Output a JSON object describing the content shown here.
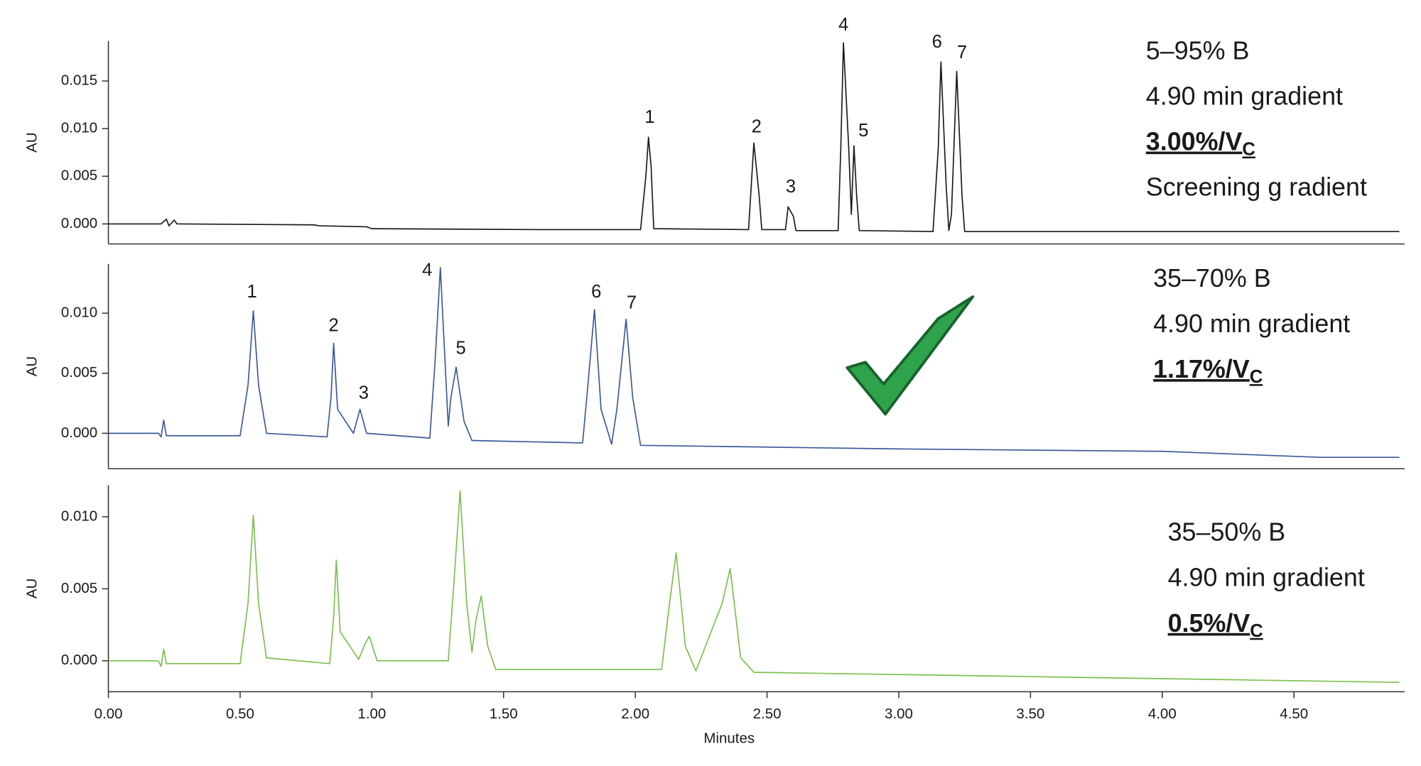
{
  "chart_data": [
    {
      "type": "line",
      "ylabel": "AU",
      "xlim": [
        0,
        4.92
      ],
      "ylim": [
        -0.0021,
        0.0192
      ],
      "yticks": [
        {
          "value": 0,
          "label": "0.000"
        },
        0.005,
        {
          "value": 0.01,
          "label": "0.010"
        },
        0.015
      ],
      "x": [
        0,
        0.2,
        0.22,
        0.23,
        0.25,
        0.26,
        0.78,
        0.8,
        0.98,
        1.0,
        1.65,
        2.02,
        2.04,
        2.05,
        2.06,
        2.07,
        2.43,
        2.44,
        2.45,
        2.47,
        2.48,
        2.57,
        2.58,
        2.6,
        2.61,
        2.77,
        2.78,
        2.79,
        2.81,
        2.82,
        2.83,
        2.84,
        2.85,
        3.13,
        3.15,
        3.16,
        3.18,
        3.19,
        3.2,
        3.22,
        3.24,
        3.25,
        4.9
      ],
      "series": [
        {
          "color": "#1a1a1a",
          "values": [
            0,
            0,
            0.0005,
            -0.0002,
            0.0004,
            0,
            -0.0001,
            -0.0002,
            -0.0003,
            -0.0005,
            -0.0006,
            -0.0006,
            0.005,
            0.0091,
            0.006,
            -0.0005,
            -0.0006,
            0.004,
            0.0085,
            0.003,
            -0.0006,
            -0.0006,
            0.0018,
            0.0008,
            -0.0007,
            -0.0007,
            0.008,
            0.019,
            0.008,
            0.001,
            0.0082,
            0.003,
            -0.0007,
            -0.0008,
            0.008,
            0.017,
            0.004,
            -0.0007,
            0.001,
            0.016,
            0.003,
            -0.0008,
            -0.0008
          ]
        }
      ],
      "peak_labels": [
        {
          "text": "1",
          "x": 2.055,
          "y": 0.0111
        },
        {
          "text": "2",
          "x": 2.46,
          "y": 0.0101
        },
        {
          "text": "3",
          "x": 2.59,
          "y": 0.0038
        },
        {
          "text": "4",
          "x": 2.79,
          "y": 0.0208
        },
        {
          "text": "5",
          "x": 2.866,
          "y": 0.0097
        },
        {
          "text": "6",
          "x": 3.145,
          "y": 0.019
        },
        {
          "text": "7",
          "x": 3.24,
          "y": 0.0179
        }
      ],
      "notes": [
        {
          "text": "5–95% B"
        },
        {
          "text": "4.90 min gradient"
        },
        {
          "text": "3.00%/V",
          "subscript": "C",
          "bold": true
        },
        {
          "text": "Screening g radient"
        }
      ]
    },
    {
      "type": "line",
      "ylabel": "AU",
      "xlim": [
        0,
        4.92
      ],
      "ylim": [
        -0.00295,
        0.0141
      ],
      "yticks": [
        {
          "value": 0,
          "label": "0.000"
        },
        0.005,
        {
          "value": 0.01,
          "label": "0.010"
        }
      ],
      "x": [
        0,
        0.19,
        0.2,
        0.21,
        0.22,
        0.5,
        0.53,
        0.55,
        0.57,
        0.6,
        0.83,
        0.845,
        0.855,
        0.87,
        0.93,
        0.94,
        0.955,
        0.98,
        1.22,
        1.24,
        1.26,
        1.28,
        1.29,
        1.3,
        1.32,
        1.35,
        1.38,
        1.8,
        1.82,
        1.845,
        1.87,
        1.91,
        1.93,
        1.965,
        1.99,
        2.02,
        3.0,
        4.0,
        4.6,
        4.9
      ],
      "series": [
        {
          "color": "#3b5998",
          "values": [
            0,
            0,
            -0.0003,
            0.0011,
            -0.0002,
            -0.0002,
            0.004,
            0.0102,
            0.004,
            0,
            -0.0003,
            0.003,
            0.0075,
            0.002,
            0,
            0.0008,
            0.002,
            0,
            -0.0004,
            0.006,
            0.0138,
            0.005,
            0.0006,
            0.003,
            0.0055,
            0.001,
            -0.0006,
            -0.0008,
            0.004,
            0.0103,
            0.002,
            -0.0009,
            0.002,
            0.0095,
            0.003,
            -0.001,
            -0.0013,
            -0.0015,
            -0.002,
            -0.002
          ]
        }
      ],
      "peak_labels": [
        {
          "text": "1",
          "x": 0.545,
          "y": 0.0117
        },
        {
          "text": "2",
          "x": 0.855,
          "y": 0.0089
        },
        {
          "text": "3",
          "x": 0.969,
          "y": 0.0033
        },
        {
          "text": "4",
          "x": 1.21,
          "y": 0.0135
        },
        {
          "text": "5",
          "x": 1.338,
          "y": 0.007
        },
        {
          "text": "6",
          "x": 1.852,
          "y": 0.0117
        },
        {
          "text": "7",
          "x": 1.986,
          "y": 0.0108
        }
      ],
      "notes": [
        {
          "text": "35–70% B"
        },
        {
          "text": "4.90 min gradient"
        },
        {
          "text": "1.17%/V",
          "subscript": "C",
          "bold": true
        }
      ]
    },
    {
      "type": "line",
      "ylabel": "AU",
      "xlabel": "Minutes",
      "xlim": [
        0,
        4.92
      ],
      "ylim": [
        -0.00215,
        0.0122
      ],
      "xticks": [
        {
          "value": 0,
          "label": "0.00"
        },
        {
          "value": 0.5,
          "label": "0.50"
        },
        {
          "value": 1,
          "label": "1.00"
        },
        {
          "value": 1.5,
          "label": "1.50"
        },
        {
          "value": 2,
          "label": "2.00"
        },
        {
          "value": 2.5,
          "label": "2.50"
        },
        {
          "value": 3,
          "label": "3.00"
        },
        {
          "value": 3.5,
          "label": "3.50"
        },
        {
          "value": 4,
          "label": "4.00"
        },
        {
          "value": 4.5,
          "label": "4.50"
        }
      ],
      "yticks": [
        {
          "value": 0,
          "label": "0.000"
        },
        0.005,
        {
          "value": 0.01,
          "label": "0.010"
        }
      ],
      "x": [
        0,
        0.19,
        0.2,
        0.21,
        0.22,
        0.5,
        0.53,
        0.55,
        0.57,
        0.6,
        0.84,
        0.855,
        0.865,
        0.88,
        0.95,
        0.975,
        0.99,
        1.02,
        1.29,
        1.31,
        1.335,
        1.36,
        1.38,
        1.395,
        1.415,
        1.44,
        1.47,
        2.1,
        2.13,
        2.155,
        2.19,
        2.23,
        2.33,
        2.36,
        2.4,
        2.45,
        3.5,
        4.2,
        4.9
      ],
      "series": [
        {
          "color": "#7cbf4e",
          "values": [
            0,
            0,
            -0.0004,
            0.0008,
            -0.0002,
            -0.0002,
            0.004,
            0.0101,
            0.004,
            0.0002,
            -0.0002,
            0.003,
            0.007,
            0.002,
            0.0001,
            0.0012,
            0.0017,
            0,
            0,
            0.005,
            0.0118,
            0.004,
            0.0006,
            0.0028,
            0.0045,
            0.001,
            -0.0006,
            -0.0006,
            0.004,
            0.0075,
            0.001,
            -0.0007,
            0.004,
            0.0064,
            0.0002,
            -0.0008,
            -0.0011,
            -0.0013,
            -0.0015
          ]
        }
      ],
      "notes": [
        {
          "text": "35–50% B"
        },
        {
          "text": "4.90 min gradient"
        },
        {
          "text": "0.5%/V",
          "subscript": "C",
          "bold": true
        }
      ]
    }
  ]
}
